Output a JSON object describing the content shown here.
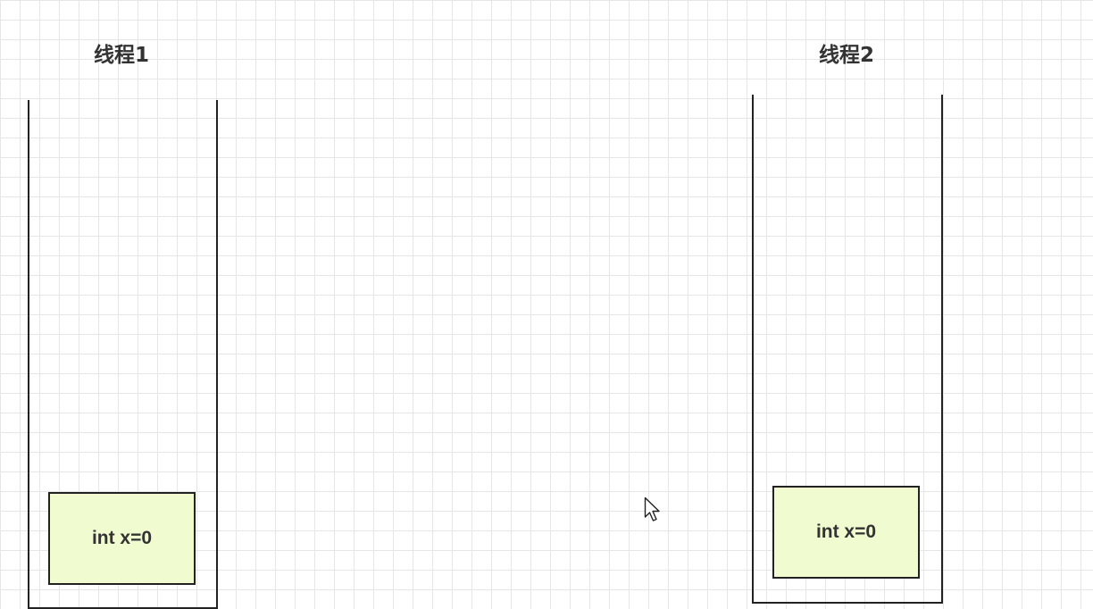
{
  "threads": [
    {
      "title": "线程1",
      "frame": {
        "label": "int x=0"
      }
    },
    {
      "title": "线程2",
      "frame": {
        "label": "int x=0"
      }
    }
  ],
  "colors": {
    "grid": "#e6e6e6",
    "stack_border": "#222222",
    "frame_fill": "#f1fbd0",
    "text": "#333333"
  },
  "icons": {
    "cursor": "mouse-pointer-icon"
  }
}
